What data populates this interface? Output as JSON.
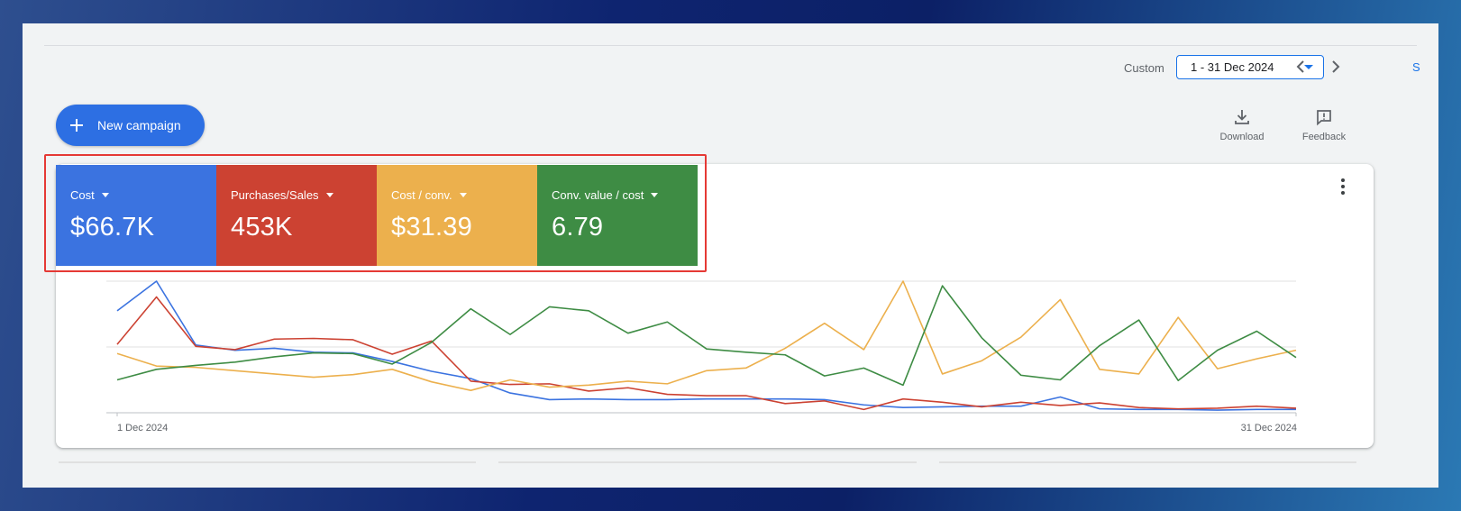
{
  "header": {
    "date_range_label": "Custom",
    "date_range_value": "1 - 31 Dec 2024",
    "edge_glyph": "S"
  },
  "toolbar": {
    "new_campaign_label": "New campaign",
    "download_label": "Download",
    "feedback_label": "Feedback"
  },
  "scorecards": [
    {
      "label": "Cost",
      "value": "$66.7K",
      "color": "#3b73e0"
    },
    {
      "label": "Purchases/Sales",
      "value": "453K",
      "color": "#cc4232"
    },
    {
      "label": "Cost / conv.",
      "value": "$31.39",
      "color": "#ecb04d"
    },
    {
      "label": "Conv. value / cost",
      "value": "6.79",
      "color": "#3e8c44"
    }
  ],
  "icons": {
    "new_campaign": "plus-icon",
    "download": "download-icon",
    "feedback": "feedback-icon",
    "more": "more-vert-icon",
    "prev": "chevron-left-icon",
    "next": "chevron-right-icon",
    "date_dropdown": "caret-down-icon"
  },
  "chart_data": {
    "type": "line",
    "x": [
      "1 Dec 2024",
      "2",
      "3",
      "4",
      "5",
      "6",
      "7",
      "8",
      "9",
      "10",
      "11",
      "12",
      "13",
      "14",
      "15",
      "16",
      "17",
      "18",
      "19",
      "20",
      "21",
      "22",
      "23",
      "24",
      "25",
      "26",
      "27",
      "28",
      "29",
      "30",
      "31 Dec 2024"
    ],
    "x_tick_labels": [
      "1 Dec 2024",
      "31 Dec 2024"
    ],
    "ylim": [
      0,
      200
    ],
    "grid": true,
    "series": [
      {
        "color": "#3b73e0",
        "values": [
          155,
          200,
          103,
          95,
          98,
          92,
          91,
          78,
          63,
          52,
          30,
          20,
          21,
          20,
          20,
          21,
          21,
          21,
          20,
          12,
          8,
          9,
          10,
          10,
          24,
          6,
          5,
          5,
          4,
          5,
          5
        ]
      },
      {
        "color": "#cc4232",
        "values": [
          104,
          176,
          101,
          96,
          112,
          113,
          111,
          89,
          109,
          48,
          43,
          44,
          33,
          38,
          28,
          26,
          26,
          14,
          18,
          5,
          21,
          16,
          9,
          16,
          11,
          15,
          8,
          6,
          7,
          10,
          7
        ]
      },
      {
        "color": "#ecb04d",
        "values": [
          90,
          71,
          69,
          64,
          59,
          54,
          58,
          66,
          47,
          34,
          50,
          39,
          42,
          48,
          44,
          64,
          68,
          98,
          136,
          96,
          200,
          59,
          79,
          115,
          172,
          66,
          59,
          145,
          67,
          82,
          95
        ]
      },
      {
        "color": "#3e8c44",
        "values": [
          50,
          66,
          72,
          77,
          85,
          91,
          90,
          74,
          107,
          158,
          119,
          161,
          155,
          121,
          138,
          97,
          92,
          88,
          56,
          68,
          42,
          193,
          114,
          57,
          50,
          102,
          141,
          49,
          95,
          124,
          84
        ]
      }
    ]
  }
}
